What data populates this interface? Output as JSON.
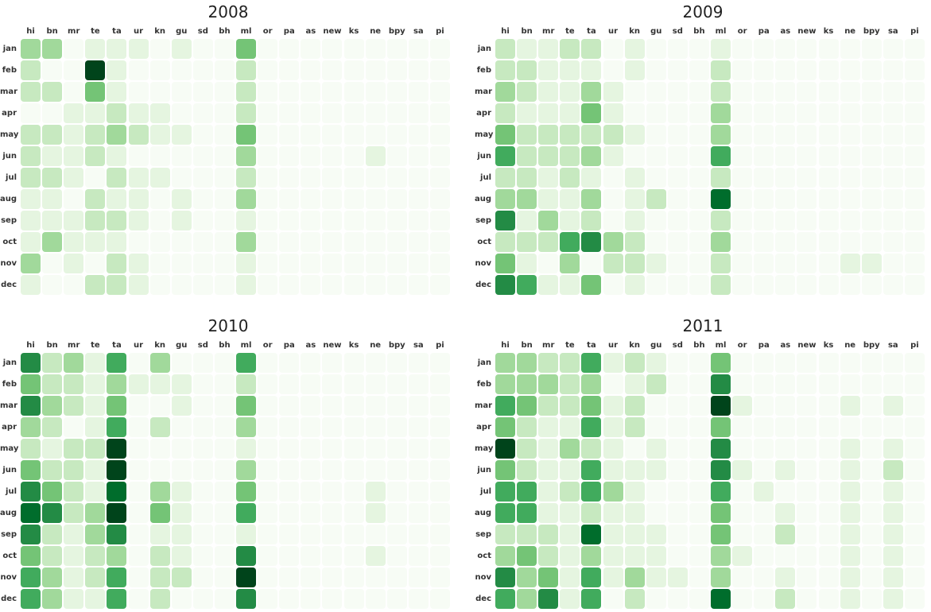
{
  "chart_data": {
    "type": "heatmap",
    "colorscale": "Greens",
    "value_range": [
      0,
      8
    ],
    "columns": [
      "hi",
      "bn",
      "mr",
      "te",
      "ta",
      "ur",
      "kn",
      "gu",
      "sd",
      "bh",
      "ml",
      "or",
      "pa",
      "as",
      "new",
      "ks",
      "ne",
      "bpy",
      "sa",
      "pi"
    ],
    "rows": [
      "jan",
      "feb",
      "mar",
      "apr",
      "may",
      "jun",
      "jul",
      "aug",
      "sep",
      "oct",
      "nov",
      "dec"
    ],
    "panels": [
      {
        "title": "2008",
        "values": [
          [
            3,
            3,
            0,
            1,
            1,
            1,
            0,
            1,
            0,
            0,
            4,
            0,
            0,
            0,
            0,
            0,
            0,
            0,
            0,
            0
          ],
          [
            2,
            0,
            0,
            8,
            1,
            0,
            0,
            0,
            0,
            0,
            2,
            0,
            0,
            0,
            0,
            0,
            0,
            0,
            0,
            0
          ],
          [
            2,
            2,
            0,
            4,
            1,
            0,
            0,
            0,
            0,
            0,
            2,
            0,
            0,
            0,
            0,
            0,
            0,
            0,
            0,
            0
          ],
          [
            0,
            0,
            1,
            1,
            2,
            1,
            1,
            0,
            0,
            0,
            2,
            0,
            0,
            0,
            0,
            0,
            0,
            0,
            0,
            0
          ],
          [
            2,
            2,
            1,
            2,
            3,
            2,
            1,
            1,
            0,
            0,
            4,
            0,
            0,
            0,
            0,
            0,
            0,
            0,
            0,
            0
          ],
          [
            2,
            1,
            1,
            2,
            1,
            0,
            0,
            0,
            0,
            0,
            3,
            0,
            0,
            0,
            0,
            0,
            1,
            0,
            0,
            0
          ],
          [
            2,
            2,
            1,
            0,
            2,
            1,
            1,
            0,
            0,
            0,
            2,
            0,
            0,
            0,
            0,
            0,
            0,
            0,
            0,
            0
          ],
          [
            1,
            1,
            0,
            2,
            1,
            1,
            0,
            1,
            0,
            0,
            3,
            0,
            0,
            0,
            0,
            0,
            0,
            0,
            0,
            0
          ],
          [
            1,
            1,
            1,
            2,
            2,
            1,
            0,
            1,
            0,
            0,
            1,
            0,
            0,
            0,
            0,
            0,
            0,
            0,
            0,
            0
          ],
          [
            1,
            3,
            1,
            1,
            1,
            0,
            0,
            0,
            0,
            0,
            3,
            0,
            0,
            0,
            0,
            0,
            0,
            0,
            0,
            0
          ],
          [
            3,
            0,
            1,
            0,
            2,
            1,
            0,
            0,
            0,
            0,
            1,
            0,
            0,
            0,
            0,
            0,
            0,
            0,
            0,
            0
          ],
          [
            1,
            0,
            0,
            2,
            2,
            1,
            0,
            0,
            0,
            0,
            1,
            0,
            0,
            0,
            0,
            0,
            0,
            0,
            0,
            0
          ]
        ]
      },
      {
        "title": "2009",
        "values": [
          [
            2,
            1,
            1,
            2,
            2,
            0,
            1,
            0,
            0,
            0,
            1,
            0,
            0,
            0,
            0,
            0,
            0,
            0,
            0,
            0
          ],
          [
            2,
            2,
            1,
            1,
            1,
            0,
            1,
            0,
            0,
            0,
            2,
            0,
            0,
            0,
            0,
            0,
            0,
            0,
            0,
            0
          ],
          [
            3,
            2,
            1,
            1,
            3,
            1,
            0,
            0,
            0,
            0,
            2,
            0,
            0,
            0,
            0,
            0,
            0,
            0,
            0,
            0
          ],
          [
            2,
            1,
            1,
            1,
            4,
            1,
            0,
            0,
            0,
            0,
            3,
            0,
            0,
            0,
            0,
            0,
            0,
            0,
            0,
            0
          ],
          [
            4,
            2,
            2,
            2,
            2,
            2,
            1,
            0,
            0,
            0,
            3,
            0,
            0,
            0,
            0,
            0,
            0,
            0,
            0,
            0
          ],
          [
            5,
            2,
            2,
            2,
            3,
            1,
            0,
            0,
            0,
            0,
            5,
            0,
            0,
            0,
            0,
            0,
            0,
            0,
            0,
            0
          ],
          [
            2,
            2,
            1,
            2,
            1,
            0,
            1,
            0,
            0,
            0,
            2,
            0,
            0,
            0,
            0,
            0,
            0,
            0,
            0,
            0
          ],
          [
            3,
            3,
            1,
            1,
            3,
            0,
            1,
            2,
            0,
            0,
            7,
            0,
            0,
            0,
            0,
            0,
            0,
            0,
            0,
            0
          ],
          [
            6,
            1,
            3,
            1,
            2,
            0,
            1,
            0,
            0,
            0,
            2,
            0,
            0,
            0,
            0,
            0,
            0,
            0,
            0,
            0
          ],
          [
            2,
            2,
            2,
            5,
            6,
            3,
            2,
            0,
            0,
            0,
            3,
            0,
            0,
            0,
            0,
            0,
            0,
            0,
            0,
            0
          ],
          [
            4,
            1,
            0,
            3,
            0,
            2,
            2,
            1,
            0,
            0,
            2,
            0,
            0,
            0,
            0,
            0,
            1,
            1,
            0,
            0
          ],
          [
            6,
            5,
            1,
            1,
            4,
            0,
            1,
            0,
            0,
            0,
            2,
            0,
            0,
            0,
            0,
            0,
            0,
            0,
            0,
            0
          ]
        ]
      },
      {
        "title": "2010",
        "values": [
          [
            6,
            2,
            3,
            1,
            5,
            0,
            3,
            0,
            0,
            0,
            5,
            0,
            0,
            0,
            0,
            0,
            0,
            0,
            0,
            0
          ],
          [
            4,
            2,
            2,
            1,
            3,
            1,
            1,
            1,
            0,
            0,
            2,
            0,
            0,
            0,
            0,
            0,
            0,
            0,
            0,
            0
          ],
          [
            6,
            3,
            2,
            1,
            4,
            0,
            0,
            1,
            0,
            0,
            4,
            0,
            0,
            0,
            0,
            0,
            0,
            0,
            0,
            0
          ],
          [
            3,
            2,
            0,
            1,
            5,
            0,
            2,
            0,
            0,
            0,
            3,
            0,
            0,
            0,
            0,
            0,
            0,
            0,
            0,
            0
          ],
          [
            2,
            1,
            2,
            2,
            8,
            0,
            0,
            0,
            0,
            0,
            1,
            0,
            0,
            0,
            0,
            0,
            0,
            0,
            0,
            0
          ],
          [
            4,
            2,
            2,
            1,
            8,
            0,
            0,
            0,
            0,
            0,
            3,
            0,
            0,
            0,
            0,
            0,
            0,
            0,
            0,
            0
          ],
          [
            6,
            4,
            2,
            1,
            7,
            0,
            3,
            1,
            0,
            0,
            4,
            0,
            0,
            0,
            0,
            0,
            1,
            0,
            0,
            0
          ],
          [
            7,
            6,
            2,
            3,
            8,
            0,
            4,
            1,
            0,
            0,
            5,
            0,
            0,
            0,
            0,
            0,
            1,
            0,
            0,
            0
          ],
          [
            6,
            2,
            1,
            3,
            6,
            0,
            1,
            1,
            0,
            0,
            1,
            0,
            0,
            0,
            0,
            0,
            0,
            0,
            0,
            0
          ],
          [
            4,
            2,
            1,
            2,
            3,
            0,
            2,
            1,
            0,
            0,
            6,
            0,
            0,
            0,
            0,
            0,
            1,
            0,
            0,
            0
          ],
          [
            5,
            3,
            1,
            2,
            5,
            0,
            2,
            2,
            0,
            0,
            8,
            0,
            0,
            0,
            0,
            0,
            0,
            0,
            0,
            0
          ],
          [
            5,
            3,
            1,
            1,
            5,
            0,
            2,
            0,
            0,
            0,
            6,
            0,
            0,
            0,
            0,
            0,
            0,
            0,
            0,
            0
          ]
        ]
      },
      {
        "title": "2011",
        "values": [
          [
            3,
            3,
            2,
            2,
            5,
            1,
            2,
            1,
            0,
            0,
            4,
            0,
            0,
            0,
            0,
            0,
            0,
            0,
            0,
            0
          ],
          [
            3,
            3,
            3,
            2,
            3,
            0,
            1,
            2,
            0,
            0,
            6,
            0,
            0,
            0,
            0,
            0,
            0,
            0,
            0,
            0
          ],
          [
            5,
            4,
            2,
            2,
            4,
            1,
            2,
            0,
            0,
            0,
            8,
            1,
            0,
            0,
            0,
            0,
            1,
            0,
            1,
            0
          ],
          [
            4,
            2,
            1,
            1,
            5,
            1,
            2,
            0,
            0,
            0,
            4,
            0,
            0,
            0,
            0,
            0,
            0,
            0,
            0,
            0
          ],
          [
            8,
            2,
            1,
            3,
            2,
            1,
            0,
            1,
            0,
            0,
            6,
            0,
            0,
            0,
            0,
            0,
            1,
            0,
            1,
            0
          ],
          [
            4,
            2,
            1,
            1,
            5,
            1,
            1,
            1,
            0,
            0,
            6,
            1,
            0,
            1,
            0,
            0,
            1,
            0,
            2,
            0
          ],
          [
            5,
            5,
            1,
            2,
            5,
            3,
            1,
            0,
            0,
            0,
            5,
            0,
            1,
            0,
            0,
            0,
            1,
            0,
            1,
            0
          ],
          [
            5,
            5,
            1,
            1,
            2,
            1,
            1,
            0,
            0,
            0,
            4,
            0,
            0,
            1,
            0,
            0,
            1,
            0,
            1,
            0
          ],
          [
            2,
            2,
            2,
            1,
            7,
            1,
            1,
            1,
            0,
            0,
            4,
            0,
            0,
            2,
            0,
            0,
            1,
            0,
            1,
            0
          ],
          [
            3,
            4,
            2,
            1,
            3,
            1,
            1,
            1,
            0,
            0,
            3,
            1,
            0,
            0,
            0,
            0,
            1,
            0,
            1,
            0
          ],
          [
            6,
            3,
            4,
            1,
            5,
            1,
            3,
            1,
            1,
            0,
            3,
            0,
            0,
            1,
            0,
            0,
            1,
            0,
            1,
            0
          ],
          [
            5,
            3,
            6,
            1,
            5,
            0,
            2,
            0,
            0,
            0,
            7,
            0,
            0,
            2,
            0,
            0,
            1,
            0,
            1,
            0
          ]
        ]
      }
    ]
  }
}
